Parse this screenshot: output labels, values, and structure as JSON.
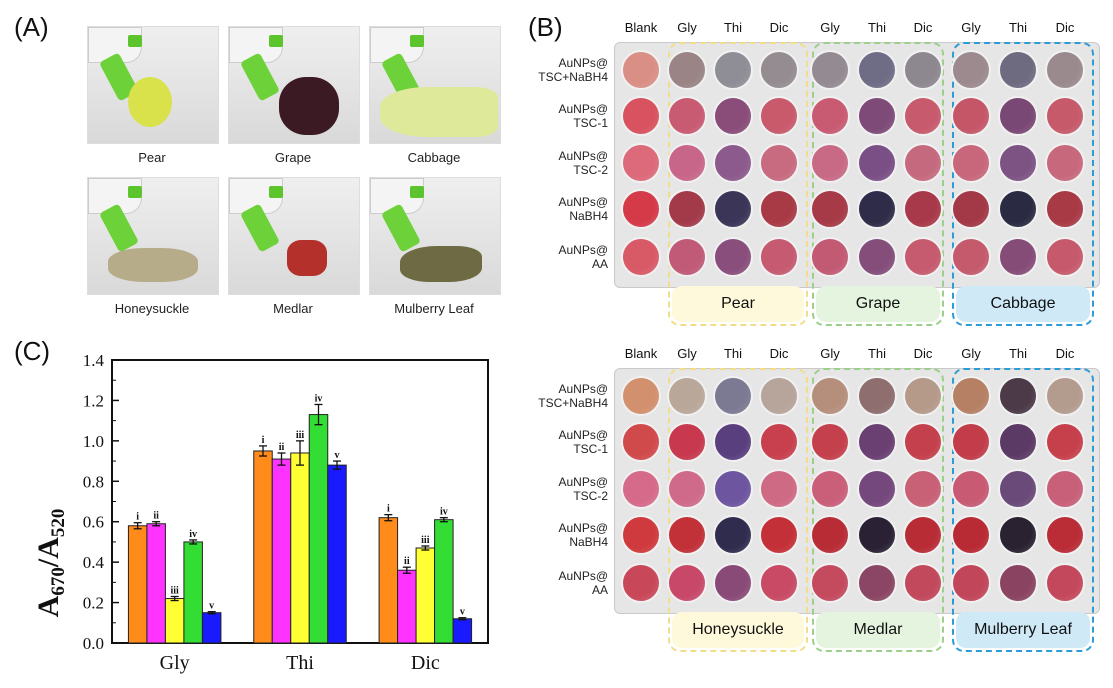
{
  "panels": {
    "a": {
      "label": "(A)",
      "photos": [
        {
          "name": "Pear",
          "object_color": "#d9e24a"
        },
        {
          "name": "Grape",
          "object_color": "#3b1a24"
        },
        {
          "name": "Cabbage",
          "object_color": "#dfe99a"
        },
        {
          "name": "Honeysuckle",
          "object_color": "#b7ac8a"
        },
        {
          "name": "Medlar",
          "object_color": "#b4302a"
        },
        {
          "name": "Mulberry Leaf",
          "object_color": "#6d6a44"
        }
      ]
    },
    "b": {
      "label": "(B)",
      "columns": [
        "Blank",
        "Gly",
        "Thi",
        "Dic",
        "Gly",
        "Thi",
        "Dic",
        "Gly",
        "Thi",
        "Dic"
      ],
      "rows": [
        [
          "AuNPs@",
          "TSC+NaBH4"
        ],
        [
          "AuNPs@",
          "TSC-1"
        ],
        [
          "AuNPs@",
          "TSC-2"
        ],
        [
          "AuNPs@",
          "NaBH4"
        ],
        [
          "AuNPs@",
          "AA"
        ]
      ],
      "plates": [
        {
          "groups": [
            {
              "name": "Pear",
              "border": "#f1de8a",
              "fill": "#fff9dc"
            },
            {
              "name": "Grape",
              "border": "#9ccf8a",
              "fill": "#e5f4df"
            },
            {
              "name": "Cabbage",
              "border": "#2f9bd6",
              "fill": "#cfe9f7"
            }
          ],
          "well_colors": [
            [
              "#d98f86",
              "#9a8486",
              "#8f8e96",
              "#948c90",
              "#948a92",
              "#6f6d86",
              "#8d8790",
              "#9c8a8e",
              "#6e6a80",
              "#9a8a8e"
            ],
            [
              "#d8525f",
              "#c85a72",
              "#8a4c79",
              "#c85a6c",
              "#c85a72",
              "#7e4a78",
              "#c75a6c",
              "#c45668",
              "#7a4874",
              "#c65a6a"
            ],
            [
              "#dc6a7a",
              "#c8668a",
              "#8c5a8c",
              "#c86a80",
              "#c86a86",
              "#7a4f86",
              "#c56a7e",
              "#c8677c",
              "#7d5384",
              "#c8687c"
            ],
            [
              "#d43a48",
              "#a23a4a",
              "#3b3658",
              "#a83a46",
              "#a63a46",
              "#2e2c48",
              "#a8394a",
              "#a33846",
              "#2a2a42",
              "#a83a46"
            ],
            [
              "#d85a66",
              "#c05a76",
              "#8a4e7c",
              "#c55a70",
              "#c25a74",
              "#844d7a",
              "#c65a6e",
              "#c45a6c",
              "#864c78",
              "#c65a6c"
            ]
          ]
        },
        {
          "groups": [
            {
              "name": "Honeysuckle",
              "border": "#f1de8a",
              "fill": "#fff9dc"
            },
            {
              "name": "Medlar",
              "border": "#9ccf8a",
              "fill": "#e5f4df"
            },
            {
              "name": "Mulberry Leaf",
              "border": "#2f9bd6",
              "fill": "#cfe9f7"
            }
          ],
          "well_colors": [
            [
              "#d2906e",
              "#b9a89a",
              "#7b7a92",
              "#b7a49a",
              "#b58f7c",
              "#8e6e6e",
              "#b59a8a",
              "#b58064",
              "#4c3a48",
              "#b39c8e"
            ],
            [
              "#d04a4c",
              "#c8384e",
              "#5a3f7e",
              "#c8404e",
              "#c4404c",
              "#6a3f72",
              "#c4404c",
              "#c23c4a",
              "#5c3a66",
              "#c6404c"
            ],
            [
              "#d66a8a",
              "#cf6a8a",
              "#6e55a0",
              "#cf6a84",
              "#ca5f7a",
              "#74487c",
              "#c86076",
              "#c85a74",
              "#6a4a78",
              "#c8607a"
            ],
            [
              "#cf3a3e",
              "#c23038",
              "#2f2c4e",
              "#c43038",
              "#b82c36",
              "#2a2234",
              "#b82c36",
              "#b82a34",
              "#2a2230",
              "#ba2c36"
            ],
            [
              "#c8485a",
              "#c8486a",
              "#8a4a78",
              "#c84a64",
              "#c44a5e",
              "#8a4664",
              "#c2485c",
              "#c2465a",
              "#8a4462",
              "#c4485c"
            ]
          ]
        }
      ]
    },
    "c": {
      "label": "(C)",
      "chart_data": {
        "type": "bar",
        "categories": [
          "Gly",
          "Thi",
          "Dic"
        ],
        "ylabel_main": "A",
        "ylabel_sub1": "670",
        "ylabel_mid": "/A",
        "ylabel_sub2": "520",
        "ylim": [
          0,
          1.4
        ],
        "yticks": [
          "0.0",
          "0.2",
          "0.4",
          "0.6",
          "0.8",
          "1.0",
          "1.2",
          "1.4"
        ],
        "grid": false,
        "series": [
          {
            "color": "#ff8c1a",
            "values": [
              0.58,
              0.95,
              0.62
            ],
            "errors": [
              0.015,
              0.025,
              0.015
            ],
            "point_labels": [
              "i",
              "i",
              "i"
            ]
          },
          {
            "color": "#ff33ff",
            "values": [
              0.59,
              0.91,
              0.36
            ],
            "errors": [
              0.01,
              0.03,
              0.015
            ],
            "point_labels": [
              "ii",
              "ii",
              "ii"
            ]
          },
          {
            "color": "#ffff33",
            "values": [
              0.22,
              0.94,
              0.47
            ],
            "errors": [
              0.01,
              0.06,
              0.01
            ],
            "point_labels": [
              "iii",
              "iii",
              "iii"
            ]
          },
          {
            "color": "#33dd33",
            "values": [
              0.5,
              1.13,
              0.61
            ],
            "errors": [
              0.01,
              0.05,
              0.01
            ],
            "point_labels": [
              "iv",
              "iv",
              "iv"
            ]
          },
          {
            "color": "#1a1aff",
            "values": [
              0.15,
              0.88,
              0.12
            ],
            "errors": [
              0.005,
              0.02,
              0.005
            ],
            "point_labels": [
              "v",
              "v",
              "v"
            ]
          }
        ]
      }
    }
  }
}
